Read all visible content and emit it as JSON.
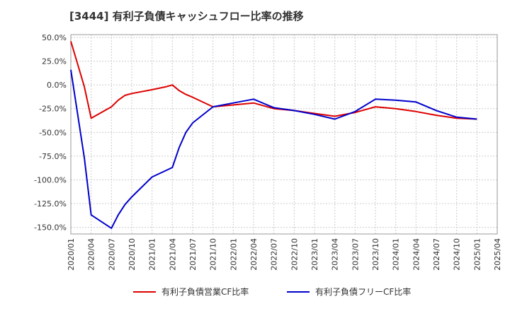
{
  "chart_data": {
    "type": "line",
    "title": "[3444]  有利子負債キャッシュフロー比率の推移",
    "xlabel": "",
    "ylabel": "",
    "ylim": [
      -157,
      53
    ],
    "grid": true,
    "legend_position": "bottom",
    "y_ticks": [
      50,
      25,
      0,
      -25,
      -50,
      -75,
      -100,
      -125,
      -150
    ],
    "y_tick_labels": [
      "50.0%",
      "25.0%",
      "0.0%",
      "-25.0%",
      "-50.0%",
      "-75.0%",
      "-100.0%",
      "-125.0%",
      "-150.0%"
    ],
    "x_ticks": [
      "2020/01",
      "2020/04",
      "2020/07",
      "2020/10",
      "2021/01",
      "2021/04",
      "2021/07",
      "2021/10",
      "2022/01",
      "2022/04",
      "2022/07",
      "2022/10",
      "2023/01",
      "2023/04",
      "2023/07",
      "2023/10",
      "2024/01",
      "2024/04",
      "2024/07",
      "2024/10",
      "2025/01",
      "2025/04"
    ],
    "series": [
      {
        "name": "有利子負債営業CF比率",
        "color": "#dd0000",
        "x": [
          0,
          1,
          2,
          3,
          6,
          7,
          8,
          9,
          12,
          14,
          15,
          16,
          17,
          18,
          21,
          27,
          30,
          33,
          36,
          39,
          42,
          45,
          48,
          51,
          54,
          57,
          60
        ],
        "values": [
          46,
          22,
          -2,
          -35,
          -23,
          -16,
          -11,
          -9,
          -5,
          -2,
          0,
          -6,
          -10,
          -13,
          -23,
          -19,
          -25,
          -27,
          -30,
          -33,
          -29,
          -23,
          -25,
          -28,
          -32,
          -35,
          -36
        ]
      },
      {
        "name": "有利子負債フリーCF比率",
        "color": "#0000cc",
        "x": [
          0,
          2,
          3,
          6,
          7,
          8,
          9,
          12,
          15,
          16,
          17,
          18,
          21,
          24,
          27,
          30,
          33,
          36,
          39,
          42,
          45,
          48,
          51,
          54,
          57,
          60
        ],
        "values": [
          16,
          -77,
          -137,
          -151,
          -137,
          -126,
          -118,
          -97,
          -87,
          -66,
          -50,
          -40,
          -23,
          -19,
          -15,
          -24,
          -27,
          -31,
          -36,
          -28,
          -15,
          -16,
          -18,
          -27,
          -34,
          -36
        ]
      }
    ]
  }
}
